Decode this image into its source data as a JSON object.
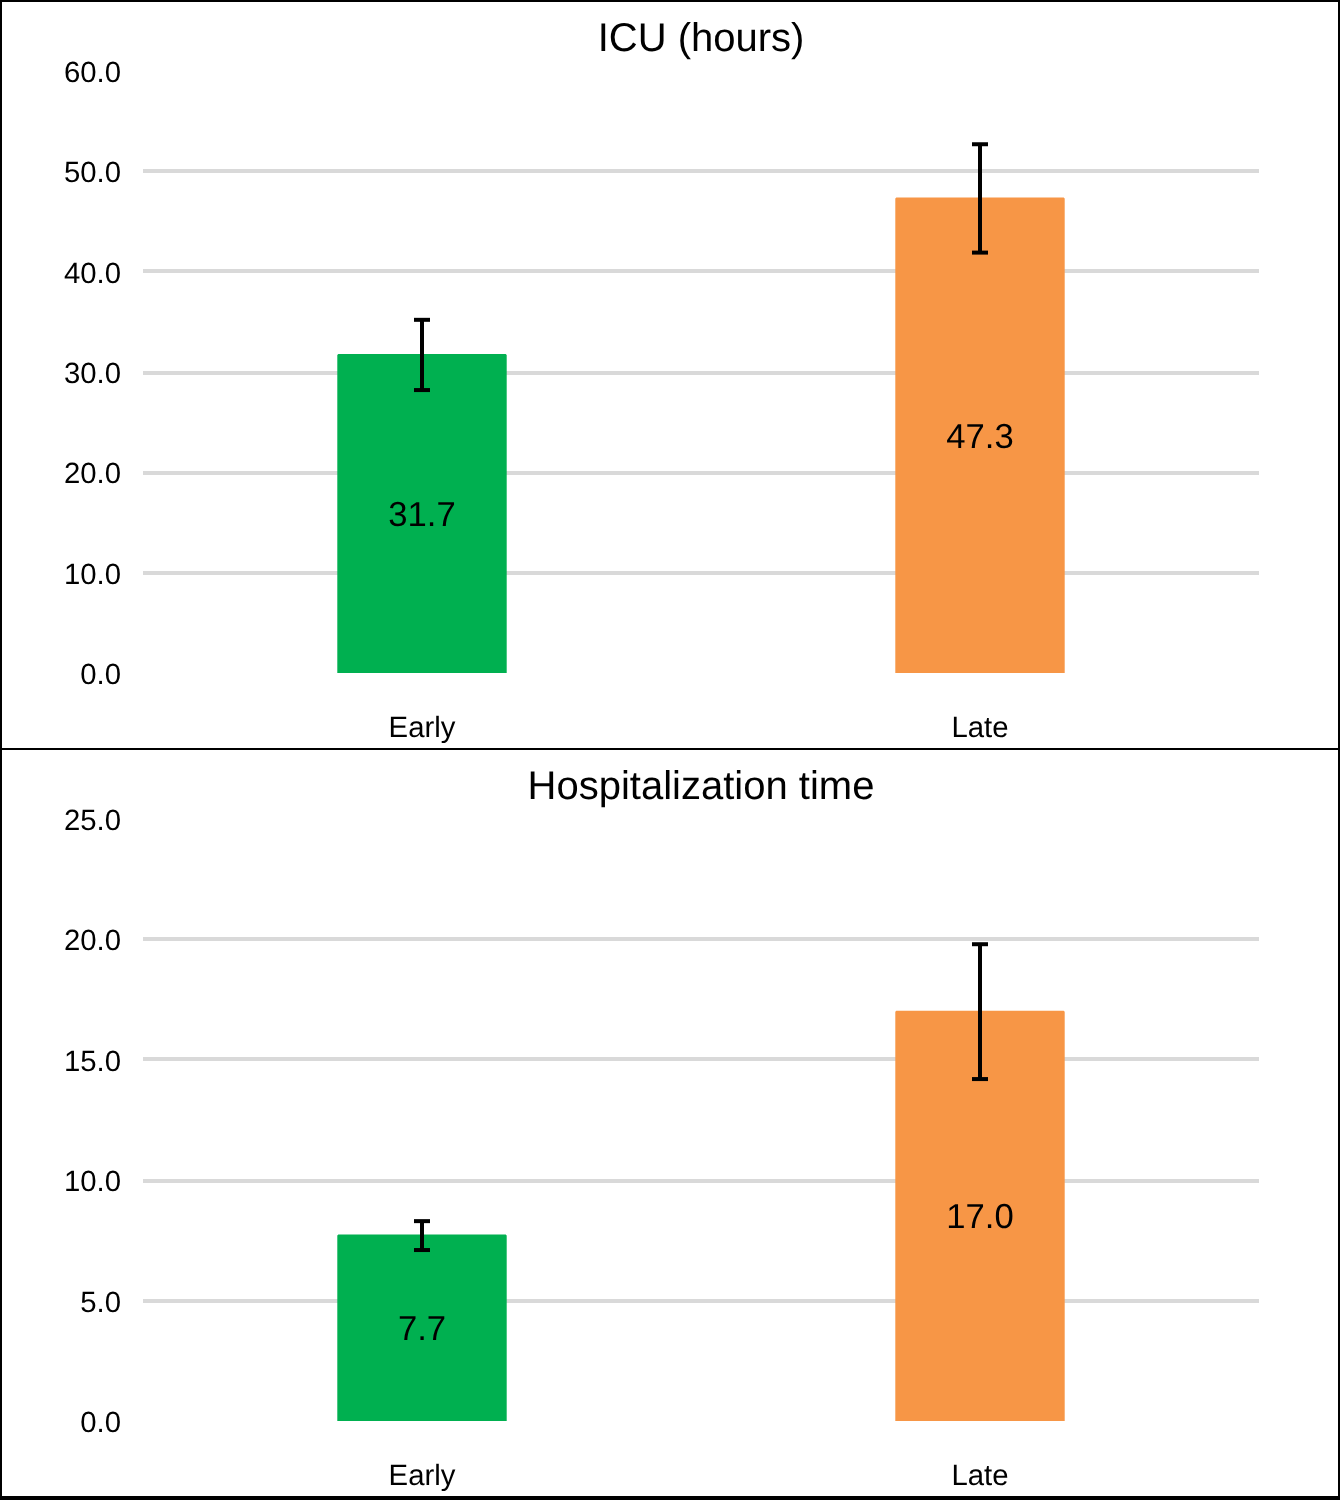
{
  "chart_data": [
    {
      "type": "bar",
      "title": "ICU (hours)",
      "categories": [
        "Early",
        "Late"
      ],
      "values": [
        31.7,
        47.3
      ],
      "colors": [
        "#00b050",
        "#f79646"
      ],
      "errors": [
        3.5,
        5.4
      ],
      "data_labels": true,
      "ylim": [
        0,
        60
      ],
      "yticks": [
        {
          "value": 0,
          "label": "0.0"
        },
        {
          "value": 10,
          "label": "10.0"
        },
        {
          "value": 20,
          "label": "20.0"
        },
        {
          "value": 30,
          "label": "30.0"
        },
        {
          "value": 40,
          "label": "40.0"
        },
        {
          "value": 50,
          "label": "50.0"
        },
        {
          "value": 60,
          "label": "60.0"
        }
      ],
      "grid": "y"
    },
    {
      "type": "bar",
      "title": "Hospitalization time",
      "categories": [
        "Early",
        "Late"
      ],
      "values": [
        7.7,
        17.0
      ],
      "colors": [
        "#00b050",
        "#f79646"
      ],
      "errors": [
        0.6,
        2.8
      ],
      "value_labels": [
        "7.7",
        "17.0"
      ],
      "ylim": [
        0,
        25
      ],
      "yticks": [
        {
          "value": 0,
          "label": "0.0"
        },
        {
          "value": 5,
          "label": "5.0"
        },
        {
          "value": 10,
          "label": "10.0"
        },
        {
          "value": 15,
          "label": "15.0"
        },
        {
          "value": 20,
          "label": "20.0"
        },
        {
          "value": 25,
          "label": "25.0"
        }
      ],
      "grid": "y"
    }
  ]
}
